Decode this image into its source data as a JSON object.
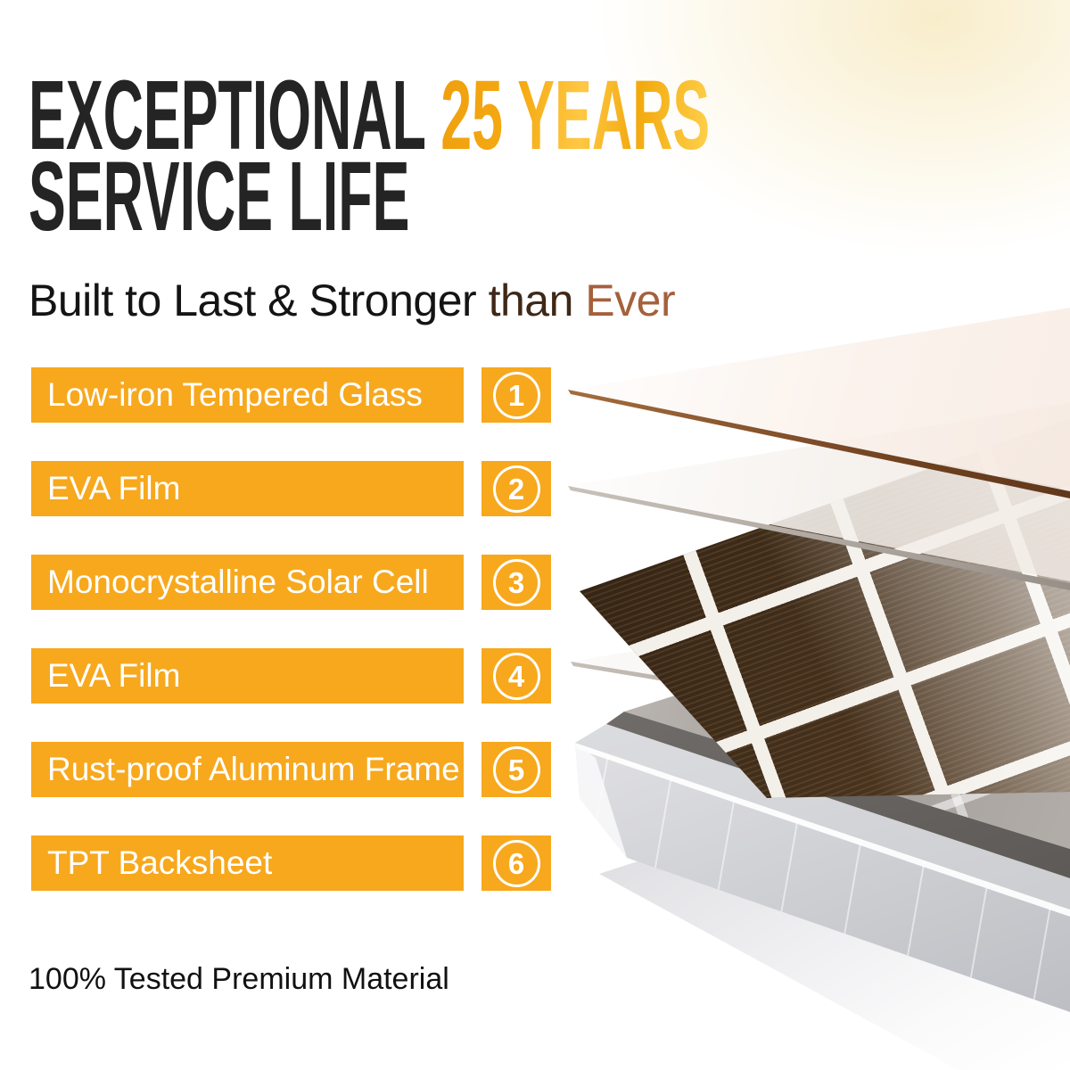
{
  "headline": {
    "line1_black": "EXCEPTIONAL ",
    "line1_gold": "25 YEARS",
    "line2": "SERVICE LIFE"
  },
  "subtitle": {
    "black": "Built to Last & Stronger ",
    "brown": "than ",
    "copper": "Ever"
  },
  "layers": [
    {
      "number": "1",
      "label": "Low-iron Tempered Glass"
    },
    {
      "number": "2",
      "label": "EVA Film"
    },
    {
      "number": "3",
      "label": "Monocrystalline Solar Cell"
    },
    {
      "number": "4",
      "label": "EVA Film"
    },
    {
      "number": "5",
      "label": "Rust-proof Aluminum Frame"
    },
    {
      "number": "6",
      "label": "TPT Backsheet"
    }
  ],
  "footnote": "100% Tested Premium Material",
  "colors": {
    "accent_orange": "#F7A81D",
    "gold_gradient_start": "#EF9F0E",
    "gold_gradient_end": "#FFD24E",
    "headline_black": "#242424",
    "subtitle_brown": "#3F2817",
    "subtitle_copper": "#A5603C",
    "solar_cell_brown": "#44301C"
  },
  "diagram": {
    "subject": "exploded view of solar panel construction layers",
    "layer_count": 6
  }
}
